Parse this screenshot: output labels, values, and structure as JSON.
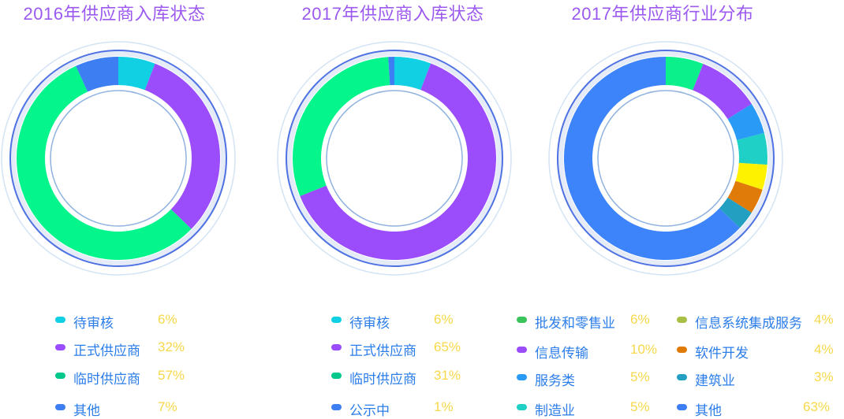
{
  "charts": [
    {
      "title": "2016年供应商入库状态",
      "slices": [
        {
          "label": "待审核",
          "value": 6,
          "value_text": "6%",
          "color": "#11d0e3"
        },
        {
          "label": "正式供应商",
          "value": 32,
          "value_text": "32%",
          "color": "#9b4dfb"
        },
        {
          "label": "临时供应商",
          "value": 57,
          "value_text": "57%",
          "color": "#03f58b"
        },
        {
          "label": "其他",
          "value": 7,
          "value_text": "7%",
          "color": "#3d7ef2"
        }
      ]
    },
    {
      "title": "2017年供应商入库状态",
      "slices": [
        {
          "label": "待审核",
          "value": 6,
          "value_text": "6%",
          "color": "#11d0e3"
        },
        {
          "label": "正式供应商",
          "value": 65,
          "value_text": "65%",
          "color": "#9b4dfb"
        },
        {
          "label": "临时供应商",
          "value": 31,
          "value_text": "31%",
          "color": "#03f58b"
        },
        {
          "label": "公示中",
          "value": 1,
          "value_text": "1%",
          "color": "#3d7ef2"
        }
      ]
    },
    {
      "title": "2017年供应商行业分布",
      "slices": [
        {
          "label": "批发和零售业",
          "value": 6,
          "value_text": "6%",
          "color": "#0bf08b"
        },
        {
          "label": "信息传输",
          "value": 10,
          "value_text": "10%",
          "color": "#9b4dfb"
        },
        {
          "label": "服务类",
          "value": 5,
          "value_text": "5%",
          "color": "#2a9af7"
        },
        {
          "label": "制造业",
          "value": 5,
          "value_text": "5%",
          "color": "#1fd0c7"
        },
        {
          "label": "信息系统集成服务",
          "value": 4,
          "value_text": "4%",
          "color": "#fff200"
        },
        {
          "label": "软件开发",
          "value": 4,
          "value_text": "4%",
          "color": "#e07b09"
        },
        {
          "label": "建筑业",
          "value": 3,
          "value_text": "3%",
          "color": "#239fc1"
        },
        {
          "label": "其他",
          "value": 63,
          "value_text": "63%",
          "color": "#3d84fb"
        }
      ]
    }
  ],
  "legend_dot_colors": {
    "chart1": [
      "#11d0e3",
      "#9b4dfb",
      "#03c78b",
      "#3d7ef2"
    ],
    "chart2": [
      "#11d0e3",
      "#9b4dfb",
      "#03c78b",
      "#3d7ef2"
    ],
    "chart3": [
      "#3bc45c",
      "#9b4dfb",
      "#2a9af7",
      "#1fd0c7",
      "#a9c046",
      "#e07b09",
      "#239fc1",
      "#3d7ef2"
    ]
  },
  "chart_data": [
    {
      "type": "pie",
      "title": "2016年供应商入库状态",
      "categories": [
        "待审核",
        "正式供应商",
        "临时供应商",
        "其他"
      ],
      "values": [
        6,
        32,
        57,
        7
      ],
      "legend_position": "bottom"
    },
    {
      "type": "pie",
      "title": "2017年供应商入库状态",
      "categories": [
        "待审核",
        "正式供应商",
        "临时供应商",
        "公示中"
      ],
      "values": [
        6,
        65,
        31,
        1
      ],
      "legend_position": "bottom"
    },
    {
      "type": "pie",
      "title": "2017年供应商行业分布",
      "categories": [
        "批发和零售业",
        "信息传输",
        "服务类",
        "制造业",
        "信息系统集成服务",
        "软件开发",
        "建筑业",
        "其他"
      ],
      "values": [
        6,
        10,
        5,
        5,
        4,
        4,
        3,
        63
      ],
      "legend_position": "bottom"
    }
  ]
}
